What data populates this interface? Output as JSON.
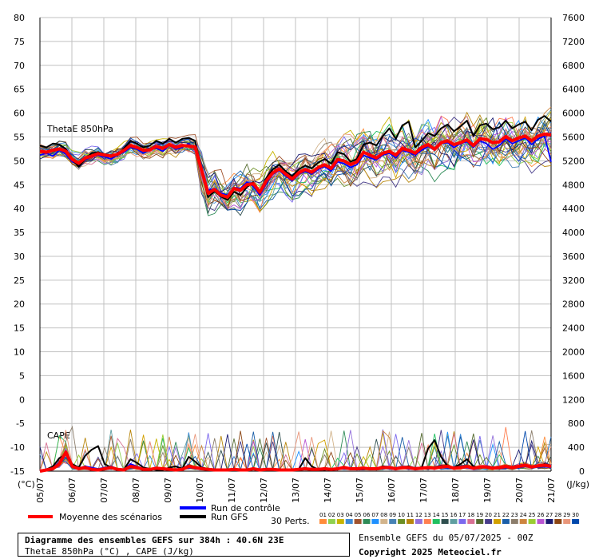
{
  "chart_data": {
    "type": "line",
    "left_axis": {
      "label": "(°C)",
      "ticks": [
        80,
        75,
        70,
        65,
        60,
        55,
        50,
        45,
        40,
        35,
        30,
        25,
        20,
        15,
        10,
        5,
        0,
        -5,
        -10,
        -15
      ],
      "range": [
        -15,
        80
      ]
    },
    "right_axis": {
      "label": "(J/kg)",
      "ticks": [
        7600,
        7200,
        6800,
        6400,
        6000,
        5600,
        5200,
        4800,
        4400,
        4000,
        3600,
        3200,
        2800,
        2400,
        2000,
        1600,
        1200,
        800,
        400,
        0
      ],
      "range": [
        0,
        7600
      ]
    },
    "x_labels": [
      "05/07",
      "06/07",
      "07/07",
      "08/07",
      "09/07",
      "10/07",
      "11/07",
      "12/07",
      "13/07",
      "14/07",
      "15/07",
      "16/07",
      "17/07",
      "18/07",
      "19/07",
      "20/07",
      "21/07"
    ],
    "grid": true,
    "panel_labels": {
      "thetae": "ThetaE 850hPa",
      "cape": "CAPE"
    },
    "thetae_mean": [
      52,
      51.8,
      52.2,
      52.5,
      52,
      50.3,
      49.5,
      50.6,
      51,
      51.5,
      51.2,
      51,
      51.4,
      52.2,
      53.2,
      52.8,
      52.2,
      52.3,
      53,
      52.6,
      53.4,
      52.8,
      53.2,
      53.1,
      52.9,
      48,
      43.2,
      44,
      42.8,
      42.4,
      44.2,
      43.8,
      45,
      45.2,
      43.4,
      45.8,
      47.5,
      48.3,
      47.2,
      46.2,
      47.5,
      48.2,
      47.6,
      48.6,
      49.2,
      48.4,
      50.3,
      50,
      49.2,
      49.8,
      51.8,
      51.2,
      50.6,
      51.6,
      52,
      51.2,
      52.6,
      52.2,
      51.6,
      52.8,
      53.4,
      52.4,
      53.8,
      54.2,
      53.4,
      53.8,
      54.4,
      53.2,
      54.6,
      54.5,
      53.8,
      54,
      55.1,
      54.2,
      54.8,
      55.2,
      54.2,
      55.2,
      55.6,
      55.4
    ],
    "thetae_gfs": [
      53.2,
      52.8,
      53.6,
      53.4,
      52.5,
      50.2,
      48.8,
      50.4,
      51.6,
      51.8,
      51.4,
      50.8,
      51.2,
      52.6,
      54.2,
      53.6,
      52.8,
      53.2,
      54.2,
      53.6,
      54.6,
      53.8,
      54.6,
      54.8,
      54.2,
      47.5,
      42.4,
      43.6,
      42.5,
      41.8,
      43.5,
      42.8,
      44.5,
      45.5,
      43.2,
      46.4,
      48.2,
      49.2,
      47.8,
      46.8,
      48.2,
      49,
      48.4,
      49.6,
      50.4,
      49.4,
      51.8,
      51.4,
      49.8,
      50.4,
      53.4,
      53.8,
      53.2,
      55.2,
      56.8,
      54.6,
      57.4,
      58.2,
      52.8,
      54.2,
      55.8,
      55.2,
      56.8,
      57.6,
      56.2,
      57.2,
      58.4,
      55.2,
      57.4,
      57.8,
      56.6,
      57,
      58.4,
      56.8,
      57.6,
      58.2,
      56.4,
      58.6,
      59.4,
      58.2
    ],
    "thetae_control": [
      51.2,
      51.6,
      51,
      52.2,
      51.4,
      49.8,
      49.2,
      50.2,
      50.8,
      51.2,
      50.8,
      50.4,
      51.2,
      51.8,
      52.8,
      52.4,
      51.6,
      52.4,
      52.6,
      52,
      53.2,
      52.4,
      52.8,
      53.6,
      52.4,
      48.2,
      43.8,
      44.2,
      43.2,
      42.8,
      44.4,
      44.2,
      45.6,
      44.6,
      42.8,
      45.2,
      47.2,
      48,
      46.8,
      45.8,
      47.2,
      47.8,
      47.2,
      48.2,
      48.8,
      47.8,
      49.8,
      49.4,
      48.6,
      49.2,
      51.2,
      50.6,
      50.2,
      51.2,
      51.6,
      50.6,
      52.2,
      51.8,
      51.2,
      52.2,
      53,
      52.2,
      53.6,
      53.8,
      52.8,
      53.6,
      54,
      52.8,
      54.2,
      53.6,
      52.4,
      53.2,
      54.6,
      53.6,
      54.2,
      54.8,
      53.4,
      54.6,
      55.2,
      49.8
    ],
    "cape_mean": [
      0,
      20,
      40,
      120,
      320,
      80,
      40,
      60,
      30,
      20,
      40,
      60,
      30,
      20,
      80,
      60,
      30,
      30,
      50,
      40,
      30,
      20,
      30,
      80,
      60,
      40,
      30,
      20,
      20,
      20,
      30,
      20,
      20,
      40,
      20,
      30,
      30,
      20,
      20,
      20,
      30,
      40,
      30,
      30,
      40,
      30,
      40,
      60,
      40,
      40,
      50,
      40,
      40,
      60,
      60,
      40,
      60,
      60,
      40,
      50,
      60,
      50,
      70,
      80,
      50,
      60,
      80,
      50,
      70,
      70,
      50,
      60,
      80,
      60,
      80,
      100,
      70,
      90,
      100,
      80
    ],
    "cape_gfs": [
      0,
      30,
      80,
      220,
      280,
      120,
      60,
      260,
      360,
      420,
      120,
      60,
      40,
      30,
      200,
      140,
      60,
      40,
      20,
      20,
      60,
      80,
      40,
      240,
      160,
      60,
      40,
      30,
      20,
      20,
      20,
      20,
      20,
      40,
      20,
      30,
      40,
      20,
      20,
      20,
      30,
      220,
      80,
      30,
      20,
      40,
      40,
      60,
      40,
      40,
      60,
      40,
      40,
      80,
      60,
      40,
      60,
      80,
      40,
      60,
      380,
      520,
      240,
      80,
      60,
      120,
      200,
      80,
      60,
      80,
      40,
      60,
      80,
      60,
      80,
      100,
      60,
      80,
      120,
      80
    ],
    "cape_control": [
      0,
      20,
      60,
      150,
      340,
      100,
      40,
      80,
      60,
      40,
      60,
      80,
      40,
      30,
      120,
      80,
      40,
      30,
      60,
      40,
      40,
      30,
      30,
      60,
      40,
      30,
      20,
      20,
      20,
      20,
      20,
      20,
      20,
      30,
      20,
      20,
      20,
      20,
      20,
      20,
      20,
      40,
      30,
      20,
      30,
      20,
      30,
      50,
      30,
      30,
      40,
      30,
      30,
      50,
      40,
      30,
      50,
      40,
      30,
      40,
      50,
      40,
      60,
      60,
      40,
      50,
      60,
      40,
      60,
      60,
      40,
      50,
      60,
      50,
      60,
      80,
      60,
      70,
      80,
      60
    ],
    "series": [
      {
        "name": "Moyenne des scénarios",
        "color": "#ff0000"
      },
      {
        "name": "Run de contrôle",
        "color": "#0000ff"
      },
      {
        "name": "Run GFS",
        "color": "#000000"
      }
    ],
    "perts_label": "30 Perts.",
    "perts": [
      "01",
      "02",
      "03",
      "04",
      "05",
      "06",
      "07",
      "08",
      "09",
      "10",
      "11",
      "12",
      "13",
      "14",
      "15",
      "16",
      "17",
      "18",
      "19",
      "20",
      "21",
      "22",
      "23",
      "24",
      "25",
      "26",
      "27",
      "28",
      "29",
      "30"
    ],
    "pert_colors": [
      "#ff8c3a",
      "#8fd14f",
      "#c8b400",
      "#3d8bd9",
      "#a0522d",
      "#2e8b57",
      "#1e90ff",
      "#d2b48c",
      "#4682b4",
      "#6b8e23",
      "#b8860b",
      "#9370db",
      "#ff7f50",
      "#20c060",
      "#2f4f4f",
      "#5f9ea0",
      "#7b68ee",
      "#d87093",
      "#556b2f",
      "#483d8b",
      "#d2a000",
      "#1a5ea8",
      "#8b7d6b",
      "#cd853f",
      "#9acd32",
      "#ba55d3",
      "#191970",
      "#8b4513",
      "#e9967a",
      "#0047ab"
    ]
  },
  "footer": {
    "title": "Diagramme des ensembles GEFS sur 384h : 40.6N 23E",
    "subtitle": "ThetaE 850hPa (°C) , CAPE (J/kg)",
    "info": "Ensemble GEFS du 05/07/2025 - 00Z",
    "copyright": "Copyright 2025 Meteociel.fr"
  }
}
